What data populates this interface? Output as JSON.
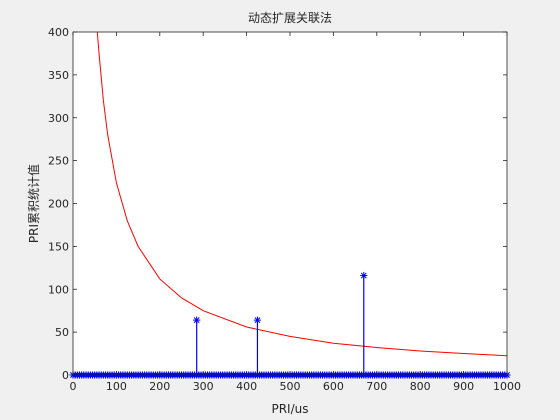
{
  "chart_data": {
    "type": "line",
    "title": "动态扩展关联法",
    "xlabel": "PRI/us",
    "ylabel": "PRI累积统计值",
    "xlim": [
      0,
      1000
    ],
    "ylim": [
      0,
      400
    ],
    "xticks": [
      0,
      100,
      200,
      300,
      400,
      500,
      600,
      700,
      800,
      900,
      1000
    ],
    "yticks": [
      0,
      50,
      100,
      150,
      200,
      250,
      300,
      350,
      400
    ],
    "grid": false,
    "series": [
      {
        "kind": "stem",
        "color": "#0000ff",
        "marker": "asterisk",
        "baseline_x_range": [
          0,
          1000
        ],
        "baseline_value": 0,
        "baseline_step": 5,
        "peaks": [
          {
            "x": 285,
            "y": 64
          },
          {
            "x": 425,
            "y": 64
          },
          {
            "x": 670,
            "y": 116
          }
        ]
      },
      {
        "kind": "curve",
        "color": "#ff0000",
        "points": [
          {
            "x": 56,
            "y": 400
          },
          {
            "x": 60,
            "y": 375
          },
          {
            "x": 70,
            "y": 320
          },
          {
            "x": 80,
            "y": 280
          },
          {
            "x": 100,
            "y": 224
          },
          {
            "x": 125,
            "y": 180
          },
          {
            "x": 150,
            "y": 150
          },
          {
            "x": 200,
            "y": 112
          },
          {
            "x": 250,
            "y": 90
          },
          {
            "x": 300,
            "y": 75
          },
          {
            "x": 400,
            "y": 56
          },
          {
            "x": 500,
            "y": 45
          },
          {
            "x": 600,
            "y": 37
          },
          {
            "x": 700,
            "y": 32
          },
          {
            "x": 800,
            "y": 28
          },
          {
            "x": 900,
            "y": 25
          },
          {
            "x": 1000,
            "y": 22.5
          }
        ]
      }
    ]
  }
}
